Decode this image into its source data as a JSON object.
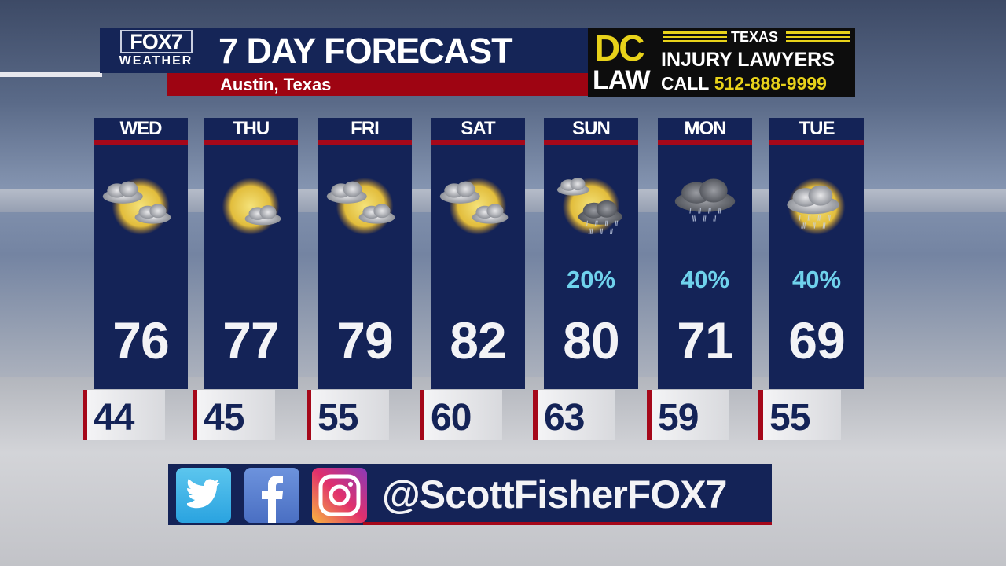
{
  "header": {
    "logo_top": "FOX7",
    "logo_bottom": "WEATHER",
    "title": "7 DAY FORECAST",
    "location": "Austin, Texas"
  },
  "ad": {
    "brand_top": "DC",
    "brand_bottom": "LAW",
    "state": "TEXAS",
    "line1": "INJURY LAWYERS",
    "call_label": "CALL",
    "phone": "512-888-9999"
  },
  "days": [
    {
      "day": "WED",
      "icon": "partly-cloudy",
      "pop": "",
      "high": "76",
      "low": "44"
    },
    {
      "day": "THU",
      "icon": "mostly-sunny",
      "pop": "",
      "high": "77",
      "low": "45"
    },
    {
      "day": "FRI",
      "icon": "partly-cloudy",
      "pop": "",
      "high": "79",
      "low": "55"
    },
    {
      "day": "SAT",
      "icon": "partly-cloudy",
      "pop": "",
      "high": "82",
      "low": "60"
    },
    {
      "day": "SUN",
      "icon": "partly-cloudy-showers",
      "pop": "20%",
      "high": "80",
      "low": "63"
    },
    {
      "day": "MON",
      "icon": "rain",
      "pop": "40%",
      "high": "71",
      "low": "59"
    },
    {
      "day": "TUE",
      "icon": "cloudy-showers",
      "pop": "40%",
      "high": "69",
      "low": "55"
    }
  ],
  "social": {
    "icons": [
      "twitter-icon",
      "facebook-icon",
      "instagram-icon"
    ],
    "handle": "@ScottFisherFOX7"
  },
  "colors": {
    "navy": "#142357",
    "red": "#a5081a",
    "pop": "#6fd2ec",
    "ad_yellow": "#e8d21a"
  }
}
